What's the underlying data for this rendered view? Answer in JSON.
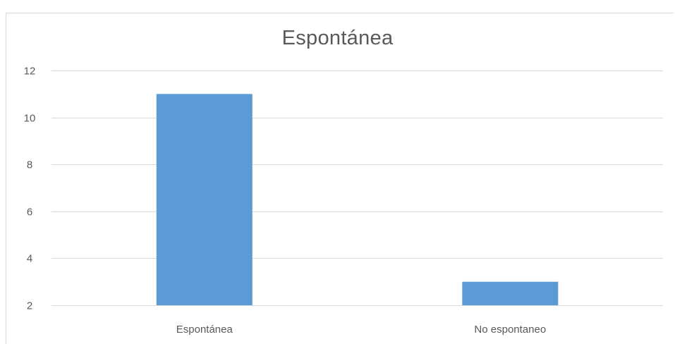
{
  "chart_data": {
    "type": "bar",
    "title": "Espontánea",
    "categories": [
      "Espontánea",
      "No espontaneo"
    ],
    "series": [
      {
        "values": [
          11,
          3
        ]
      }
    ],
    "yticks": [
      "2",
      "4",
      "6",
      "8",
      "10",
      "12"
    ],
    "ylim": [
      2,
      12
    ],
    "grid": true,
    "bar_color": "#5b9bd5",
    "grid_color": "#d9d9d9",
    "text_color": "#595959"
  }
}
